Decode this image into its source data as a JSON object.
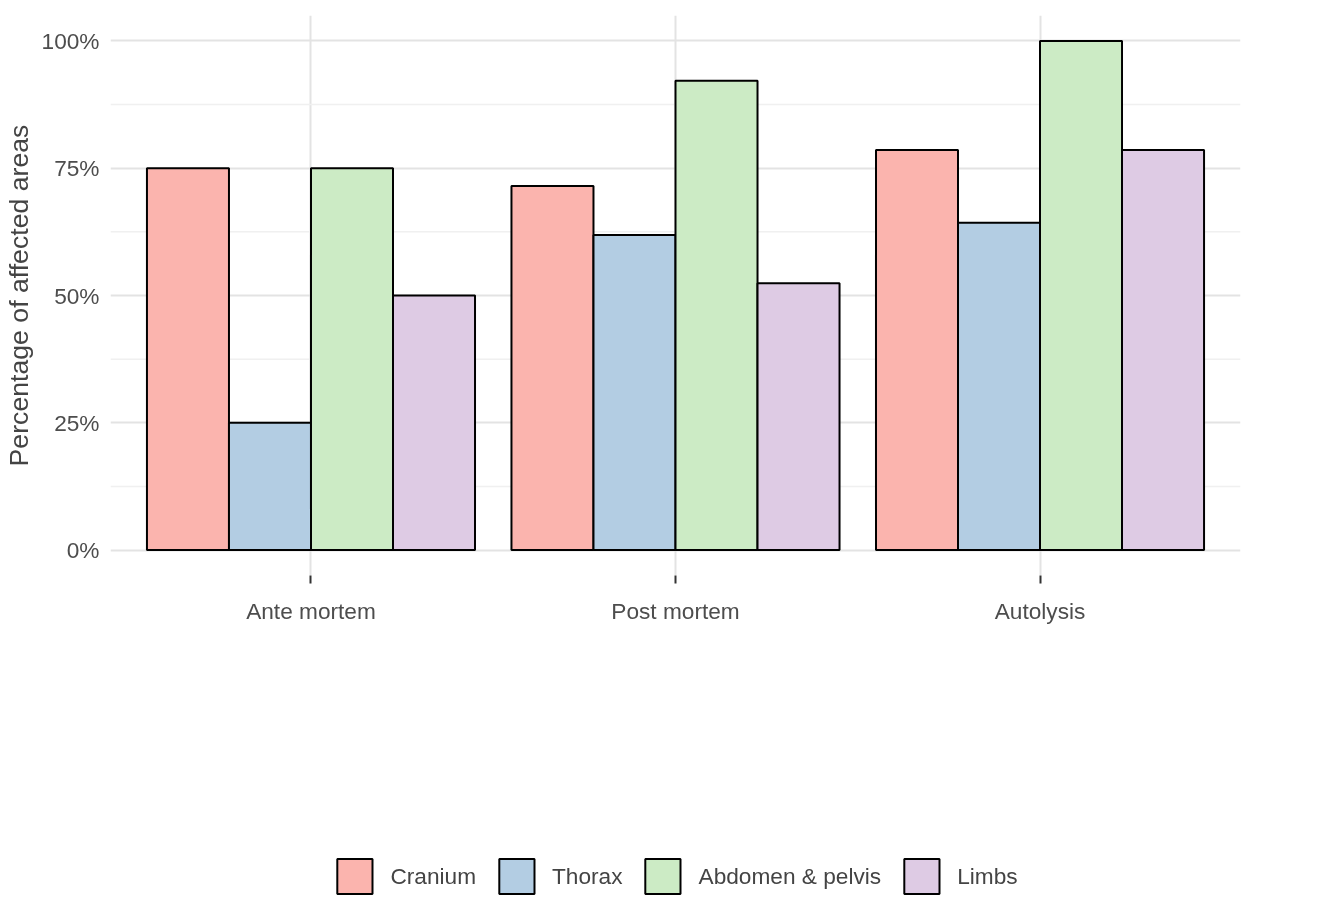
{
  "chart_data": {
    "type": "bar",
    "ylabel": "Percentage of affected areas",
    "categories": [
      "Ante mortem",
      "Post mortem",
      "Autolysis"
    ],
    "series": [
      {
        "name": "Cranium",
        "color": "#fbb4ae",
        "values": [
          75,
          71.5,
          78.6
        ]
      },
      {
        "name": "Thorax",
        "color": "#b3cde3",
        "values": [
          25,
          61.9,
          64.3
        ]
      },
      {
        "name": "Abdomen & pelvis",
        "color": "#ccebc5",
        "values": [
          75,
          92.2,
          100
        ]
      },
      {
        "name": "Limbs",
        "color": "#decbe4",
        "values": [
          50,
          52.4,
          78.6
        ]
      }
    ],
    "ylim": [
      -5,
      105
    ],
    "yticks": [
      {
        "value": 0,
        "label": "0%"
      },
      {
        "value": 12.5,
        "label": null
      },
      {
        "value": 25,
        "label": "25%"
      },
      {
        "value": 37.5,
        "label": null
      },
      {
        "value": 50,
        "label": "50%"
      },
      {
        "value": 62.5,
        "label": null
      },
      {
        "value": 75,
        "label": "75%"
      },
      {
        "value": 87.5,
        "label": null
      },
      {
        "value": 100,
        "label": "100%"
      }
    ],
    "grid": true,
    "legend": "bottom"
  }
}
